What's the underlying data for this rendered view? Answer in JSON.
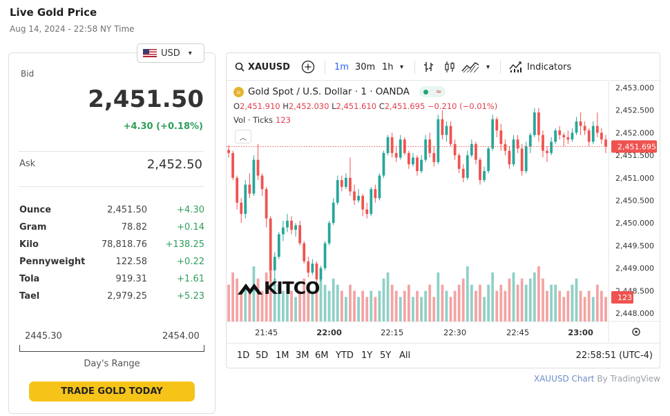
{
  "header": {
    "title": "Live Gold Price",
    "timestamp": "Aug 14, 2024 - 22:58 NY Time"
  },
  "currency": {
    "selected": "USD",
    "flag": "us-flag"
  },
  "quote": {
    "bid_label": "Bid",
    "bid": "2,451.50",
    "change": "+4.30 (+0.18%)",
    "ask_label": "Ask",
    "ask": "2,452.50",
    "up_color": "#2e9e5b"
  },
  "units": [
    {
      "name": "Ounce",
      "price": "2,451.50",
      "change": "+4.30"
    },
    {
      "name": "Gram",
      "price": "78.82",
      "change": "+0.14"
    },
    {
      "name": "Kilo",
      "price": "78,818.76",
      "change": "+138.25"
    },
    {
      "name": "Pennyweight",
      "price": "122.58",
      "change": "+0.22"
    },
    {
      "name": "Tola",
      "price": "919.31",
      "change": "+1.61"
    },
    {
      "name": "Tael",
      "price": "2,979.25",
      "change": "+5.23"
    }
  ],
  "day_range": {
    "low": "2445.30",
    "high": "2454.00",
    "label": "Day's Range"
  },
  "trade_button": "TRADE GOLD TODAY",
  "toolbar": {
    "symbol": "XAUUSD",
    "intervals": [
      "1m",
      "30m",
      "1h"
    ],
    "active_interval": "1m",
    "indicators": "Indicators"
  },
  "legend": {
    "name": "Gold Spot / U.S. Dollar · 1 · OANDA",
    "o_label": "O",
    "o": "2,451.910",
    "h_label": "H",
    "h": "2,452.030",
    "l_label": "L",
    "l": "2,451.610",
    "c_label": "C",
    "c": "2,451.695",
    "chg": "−0.210 (−0.01%)",
    "vol_label": "Vol · Ticks",
    "vol_value": "123"
  },
  "ranges": [
    "1D",
    "5D",
    "1M",
    "3M",
    "6M",
    "YTD",
    "1Y",
    "5Y",
    "All"
  ],
  "clock": "22:58:51 (UTC-4)",
  "attribution": {
    "link": "XAUUSD Chart",
    "by": "By TradingView"
  },
  "watermark": "KITCO",
  "chart_data": {
    "type": "candlestick",
    "title": "Gold Spot / U.S. Dollar · 1 · OANDA",
    "y_ticks": [
      "2,453.000",
      "2,452.500",
      "2,452.000",
      "2,451.500",
      "2,451.000",
      "2,450.500",
      "2,450.000",
      "2,449.500",
      "2,449.000",
      "2,448.500",
      "2,448.000"
    ],
    "ylim": [
      2448.0,
      2453.0
    ],
    "x_ticks": [
      "21:45",
      "22:00",
      "22:15",
      "22:30",
      "22:45",
      "23:00"
    ],
    "x_tick_minutes": [
      15,
      30,
      45,
      60,
      75,
      90
    ],
    "last_price": 2451.695,
    "last_price_label": "2,451.695",
    "volume_label": "123",
    "colors": {
      "up": "#26a69a",
      "down": "#ef5350",
      "up_vol": "#8fd0c6",
      "down_vol": "#f3a3a3"
    },
    "candles": [
      [
        2451.62,
        2451.72,
        2451.45,
        2451.55,
        6
      ],
      [
        2451.55,
        2451.6,
        2450.95,
        2451.0,
        8
      ],
      [
        2451.0,
        2451.05,
        2450.3,
        2450.45,
        7
      ],
      [
        2450.45,
        2450.55,
        2450.0,
        2450.2,
        5
      ],
      [
        2450.2,
        2450.95,
        2450.1,
        2450.85,
        6
      ],
      [
        2450.85,
        2451.1,
        2450.55,
        2450.65,
        5
      ],
      [
        2450.65,
        2451.5,
        2450.6,
        2451.4,
        9
      ],
      [
        2451.4,
        2451.75,
        2450.95,
        2451.05,
        7
      ],
      [
        2451.05,
        2451.1,
        2450.6,
        2450.75,
        5
      ],
      [
        2450.75,
        2450.8,
        2449.9,
        2450.1,
        8
      ],
      [
        2450.1,
        2450.15,
        2448.7,
        2448.95,
        9
      ],
      [
        2448.95,
        2449.35,
        2448.6,
        2449.25,
        7
      ],
      [
        2449.25,
        2449.8,
        2449.2,
        2449.75,
        6
      ],
      [
        2449.75,
        2450.05,
        2449.6,
        2449.9,
        5
      ],
      [
        2449.9,
        2450.2,
        2449.8,
        2450.05,
        6
      ],
      [
        2450.05,
        2450.15,
        2449.75,
        2449.85,
        5
      ],
      [
        2449.85,
        2450.0,
        2449.7,
        2449.95,
        4
      ],
      [
        2449.95,
        2450.05,
        2449.5,
        2449.55,
        5
      ],
      [
        2449.55,
        2449.6,
        2449.1,
        2449.15,
        7
      ],
      [
        2449.15,
        2449.25,
        2448.8,
        2448.9,
        6
      ],
      [
        2448.9,
        2449.2,
        2448.85,
        2449.1,
        5
      ],
      [
        2449.1,
        2449.15,
        2448.65,
        2448.75,
        6
      ],
      [
        2448.75,
        2449.05,
        2448.7,
        2449.0,
        7
      ],
      [
        2449.0,
        2449.6,
        2448.95,
        2449.55,
        6
      ],
      [
        2449.55,
        2450.05,
        2449.5,
        2450.0,
        5
      ],
      [
        2450.0,
        2450.55,
        2449.95,
        2450.45,
        7
      ],
      [
        2450.45,
        2451.05,
        2450.4,
        2450.95,
        6
      ],
      [
        2450.95,
        2451.05,
        2450.7,
        2450.8,
        5
      ],
      [
        2450.8,
        2451.1,
        2450.75,
        2451.0,
        4
      ],
      [
        2451.0,
        2451.45,
        2450.6,
        2450.7,
        6
      ],
      [
        2450.7,
        2450.85,
        2450.4,
        2450.5,
        5
      ],
      [
        2450.5,
        2450.75,
        2450.45,
        2450.6,
        4
      ],
      [
        2450.6,
        2450.65,
        2450.15,
        2450.3,
        5
      ],
      [
        2450.3,
        2450.45,
        2450.1,
        2450.2,
        4
      ],
      [
        2450.2,
        2450.8,
        2450.15,
        2450.75,
        5
      ],
      [
        2450.75,
        2450.85,
        2450.45,
        2450.55,
        4
      ],
      [
        2450.55,
        2451.1,
        2450.5,
        2451.05,
        5
      ],
      [
        2451.05,
        2451.6,
        2451.0,
        2451.55,
        7
      ],
      [
        2451.55,
        2451.95,
        2451.5,
        2451.9,
        8
      ],
      [
        2451.9,
        2452.0,
        2451.45,
        2451.55,
        6
      ],
      [
        2451.55,
        2451.7,
        2451.35,
        2451.45,
        5
      ],
      [
        2451.45,
        2451.95,
        2451.4,
        2451.85,
        4
      ],
      [
        2451.85,
        2451.9,
        2451.5,
        2451.55,
        5
      ],
      [
        2451.55,
        2451.6,
        2451.2,
        2451.3,
        6
      ],
      [
        2451.3,
        2451.55,
        2451.25,
        2451.45,
        4
      ],
      [
        2451.45,
        2451.5,
        2451.05,
        2451.15,
        5
      ],
      [
        2451.15,
        2451.5,
        2451.1,
        2451.4,
        4
      ],
      [
        2451.4,
        2451.95,
        2451.35,
        2451.85,
        5
      ],
      [
        2451.85,
        2452.0,
        2451.45,
        2451.55,
        6
      ],
      [
        2451.55,
        2451.7,
        2451.25,
        2451.35,
        4
      ],
      [
        2451.35,
        2452.4,
        2451.3,
        2452.3,
        8
      ],
      [
        2452.3,
        2452.5,
        2451.85,
        2451.95,
        6
      ],
      [
        2451.95,
        2452.25,
        2451.8,
        2452.15,
        5
      ],
      [
        2452.15,
        2452.25,
        2451.7,
        2451.75,
        4
      ],
      [
        2451.75,
        2451.85,
        2451.4,
        2451.5,
        5
      ],
      [
        2451.5,
        2451.55,
        2451.1,
        2451.2,
        6
      ],
      [
        2451.2,
        2451.3,
        2450.9,
        2451.0,
        7
      ],
      [
        2451.0,
        2451.6,
        2450.95,
        2451.5,
        9
      ],
      [
        2451.5,
        2451.85,
        2451.45,
        2451.75,
        6
      ],
      [
        2451.75,
        2451.8,
        2451.3,
        2451.4,
        5
      ],
      [
        2451.4,
        2451.45,
        2450.85,
        2450.95,
        6
      ],
      [
        2450.95,
        2451.25,
        2450.9,
        2451.15,
        4
      ],
      [
        2451.15,
        2451.7,
        2451.1,
        2451.65,
        6
      ],
      [
        2451.65,
        2452.4,
        2451.6,
        2452.3,
        8
      ],
      [
        2452.3,
        2452.35,
        2451.9,
        2452.05,
        5
      ],
      [
        2452.05,
        2452.2,
        2451.6,
        2451.75,
        6
      ],
      [
        2451.75,
        2451.85,
        2451.5,
        2451.6,
        5
      ],
      [
        2451.6,
        2451.7,
        2451.2,
        2451.3,
        7
      ],
      [
        2451.3,
        2451.95,
        2451.25,
        2451.85,
        8
      ],
      [
        2451.85,
        2451.95,
        2451.55,
        2451.65,
        6
      ],
      [
        2451.65,
        2451.75,
        2451.05,
        2451.15,
        7
      ],
      [
        2451.15,
        2451.8,
        2451.1,
        2451.7,
        6
      ],
      [
        2451.7,
        2452.0,
        2451.55,
        2451.95,
        7
      ],
      [
        2451.95,
        2452.55,
        2451.9,
        2452.45,
        8
      ],
      [
        2452.45,
        2452.55,
        2451.8,
        2451.95,
        9
      ],
      [
        2451.95,
        2452.05,
        2451.45,
        2451.6,
        7
      ],
      [
        2451.6,
        2451.7,
        2451.35,
        2451.55,
        5
      ],
      [
        2451.55,
        2451.9,
        2451.5,
        2451.8,
        6
      ],
      [
        2451.8,
        2452.1,
        2451.75,
        2452.05,
        6
      ],
      [
        2452.05,
        2452.15,
        2451.85,
        2451.95,
        5
      ],
      [
        2451.95,
        2452.0,
        2451.7,
        2451.9,
        4
      ],
      [
        2451.9,
        2452.05,
        2451.75,
        2451.85,
        5
      ],
      [
        2451.85,
        2452.1,
        2451.8,
        2452.0,
        6
      ],
      [
        2452.0,
        2452.35,
        2451.95,
        2452.25,
        7
      ],
      [
        2452.25,
        2452.45,
        2451.95,
        2452.15,
        5
      ],
      [
        2452.15,
        2452.25,
        2451.95,
        2452.05,
        4
      ],
      [
        2452.05,
        2452.1,
        2451.7,
        2451.8,
        5
      ],
      [
        2451.8,
        2452.25,
        2451.75,
        2452.15,
        4
      ],
      [
        2452.15,
        2452.45,
        2451.9,
        2452.0,
        6
      ],
      [
        2452.0,
        2452.1,
        2451.75,
        2451.85,
        5
      ],
      [
        2451.85,
        2451.95,
        2451.55,
        2451.7,
        4
      ]
    ]
  }
}
